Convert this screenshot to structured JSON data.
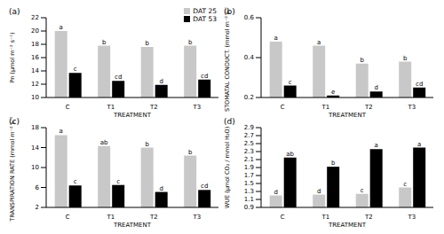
{
  "chart_data": [
    {
      "type": "bar",
      "title": "(a)",
      "x_label": "TREATMENT",
      "y_label": "Pn (μmol m⁻² s⁻¹)",
      "categories": [
        "C",
        "T1",
        "T2",
        "T3"
      ],
      "series": [
        {
          "name": "DAT 25",
          "color": "#c8c8c8",
          "values": [
            20.0,
            17.8,
            17.6,
            17.8
          ],
          "annotations": [
            "a",
            "b",
            "b",
            "b"
          ]
        },
        {
          "name": "DAT 53",
          "color": "#000000",
          "values": [
            13.7,
            12.5,
            11.9,
            12.7
          ],
          "annotations": [
            "c",
            "cd",
            "d",
            "cd"
          ]
        }
      ],
      "ylim": [
        10,
        22
      ],
      "yticks": [
        10,
        12,
        14,
        16,
        18,
        20,
        22
      ],
      "legend": "upper right"
    },
    {
      "type": "bar",
      "title": "(b)",
      "x_label": "TREATMENT",
      "y_label": "STOMATAL CONDUCT. (mmol m⁻² s⁻¹)",
      "categories": [
        "C",
        "T1",
        "T2",
        "T3"
      ],
      "series": [
        {
          "name": "DAT 25",
          "color": "#c8c8c8",
          "values": [
            0.48,
            0.46,
            0.37,
            0.38
          ],
          "annotations": [
            "a",
            "a",
            "b",
            "b"
          ]
        },
        {
          "name": "DAT 53",
          "color": "#000000",
          "values": [
            0.26,
            0.21,
            0.23,
            0.25
          ],
          "annotations": [
            "c",
            "e",
            "d",
            "cd"
          ]
        }
      ],
      "ylim": [
        0.2,
        0.6
      ],
      "yticks": [
        0.2,
        0.4,
        0.6
      ]
    },
    {
      "type": "bar",
      "title": "(c)",
      "x_label": "TREATMENT",
      "y_label": "TRANSPIRATION RATE (mmol m⁻² s⁻¹)",
      "categories": [
        "C",
        "T1",
        "T2",
        "T3"
      ],
      "series": [
        {
          "name": "DAT 25",
          "color": "#c8c8c8",
          "values": [
            16.5,
            14.3,
            14.0,
            12.4
          ],
          "annotations": [
            "a",
            "ab",
            "b",
            "b"
          ]
        },
        {
          "name": "DAT 53",
          "color": "#000000",
          "values": [
            6.4,
            6.5,
            5.1,
            5.5
          ],
          "annotations": [
            "c",
            "c",
            "d",
            "cd"
          ]
        }
      ],
      "ylim": [
        2,
        18
      ],
      "yticks": [
        2,
        6,
        10,
        14,
        18
      ]
    },
    {
      "type": "bar",
      "title": "(d)",
      "x_label": "TREATMENT",
      "y_label": "WUE (μmol CO₂ / mmol H₂O)",
      "categories": [
        "C",
        "T1",
        "T2",
        "T3"
      ],
      "series": [
        {
          "name": "DAT 25",
          "color": "#c8c8c8",
          "values": [
            1.2,
            1.22,
            1.24,
            1.4
          ],
          "annotations": [
            "d",
            "d",
            "c",
            "c"
          ]
        },
        {
          "name": "DAT 53",
          "color": "#000000",
          "values": [
            2.15,
            1.92,
            2.36,
            2.4
          ],
          "annotations": [
            "ab",
            "b",
            "a",
            "a"
          ]
        }
      ],
      "ylim": [
        0.9,
        2.9
      ],
      "yticks": [
        0.9,
        1.1,
        1.3,
        1.5,
        1.7,
        1.9,
        2.1,
        2.3,
        2.5,
        2.7,
        2.9
      ]
    }
  ]
}
